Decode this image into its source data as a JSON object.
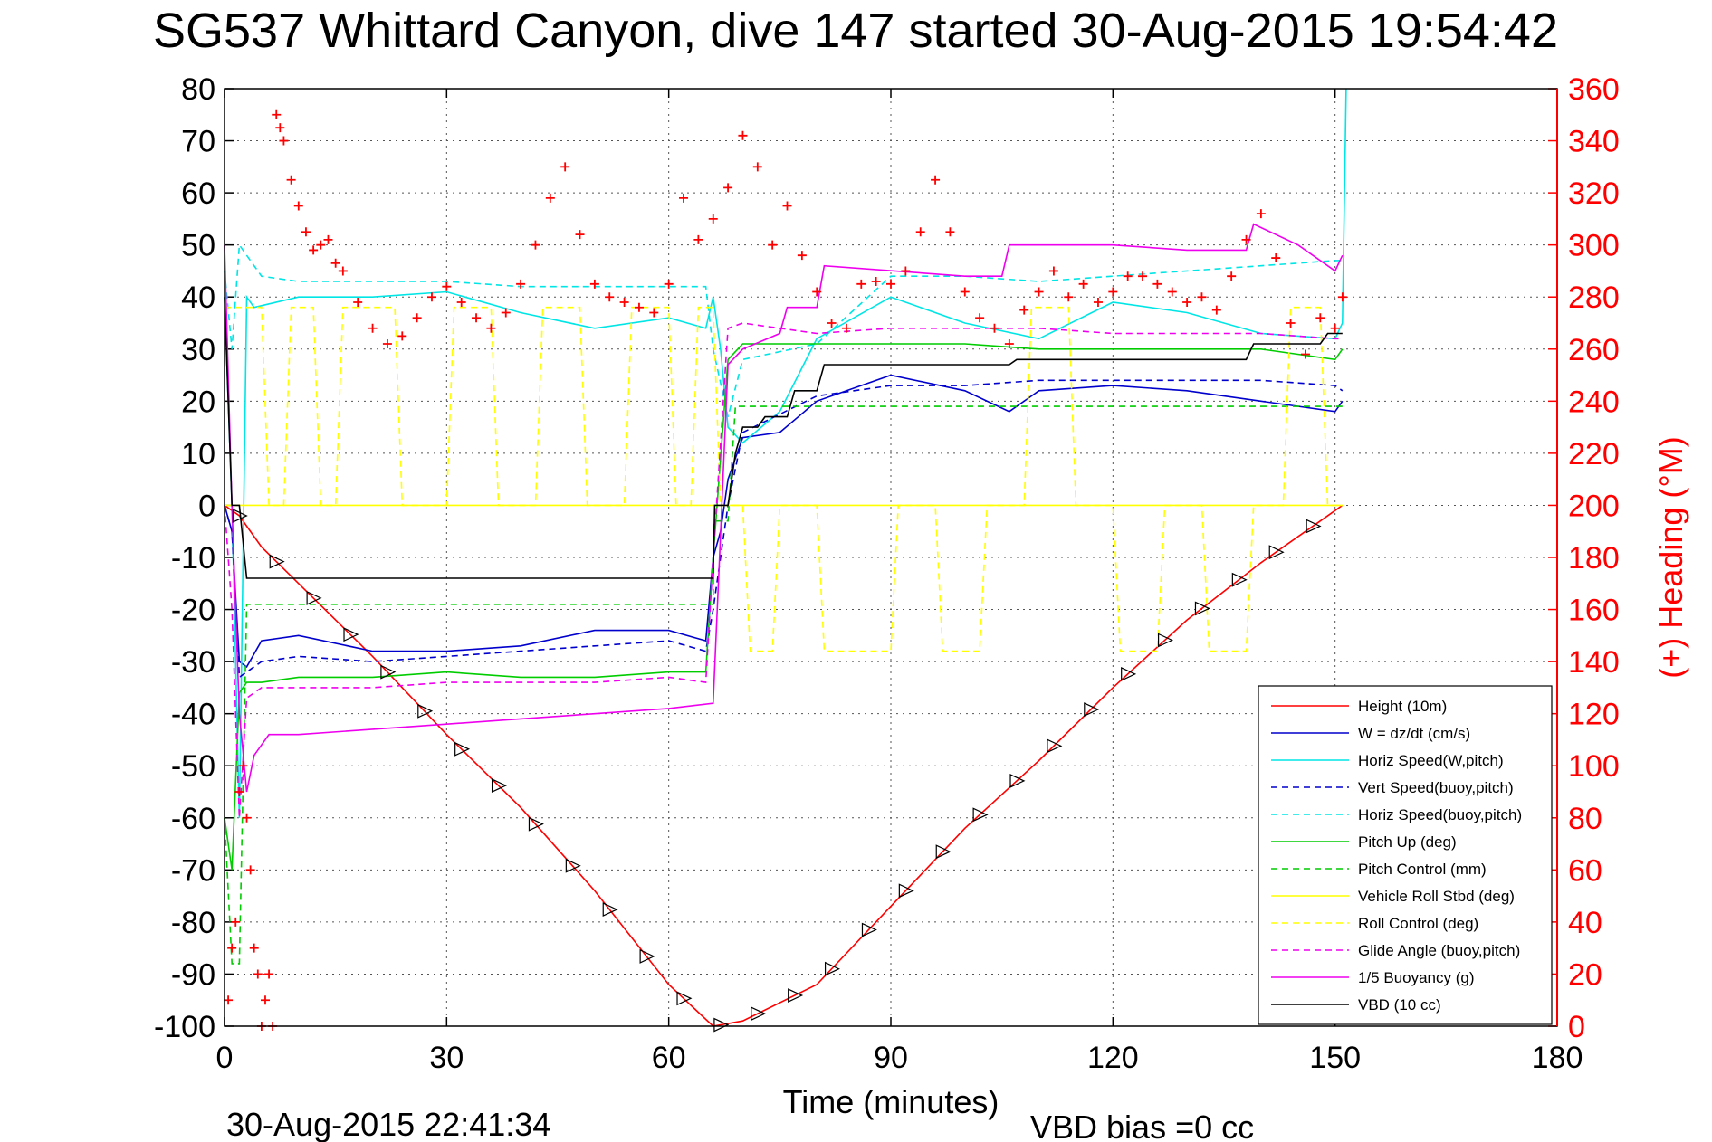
{
  "chart_data": {
    "type": "line",
    "title": "SG537 Whittard Canyon, dive 147 started 30-Aug-2015 19:54:42",
    "xlabel": "Time (minutes)",
    "ylabel": "",
    "ylabel_right": "(+) Heading (°M)",
    "xlim": [
      0,
      180
    ],
    "ylim": [
      -100,
      80
    ],
    "ylim_right": [
      0,
      360
    ],
    "x_ticks": [
      "0",
      "30",
      "60",
      "90",
      "120",
      "150",
      "180"
    ],
    "y_ticks": [
      "80",
      "70",
      "60",
      "50",
      "40",
      "30",
      "20",
      "10",
      "0",
      "-10",
      "-20",
      "-30",
      "-40",
      "-50",
      "-60",
      "-70",
      "-80",
      "-90",
      "-100"
    ],
    "y_ticks_right": [
      "360",
      "340",
      "320",
      "300",
      "280",
      "260",
      "240",
      "220",
      "200",
      "180",
      "160",
      "140",
      "120",
      "100",
      "80",
      "60",
      "40",
      "20",
      "0"
    ],
    "grid": true,
    "legend_position": "bottom-right",
    "series": [
      {
        "name": "Height (10m)",
        "color": "#ff0000",
        "style": "solid",
        "x": [
          0,
          2,
          5,
          10,
          20,
          30,
          40,
          50,
          60,
          66,
          70,
          80,
          90,
          100,
          110,
          120,
          130,
          140,
          150,
          151
        ],
        "y": [
          0,
          -2,
          -8,
          -15,
          -29,
          -44,
          -58,
          -74,
          -92,
          -100,
          -99,
          -92,
          -77,
          -62,
          -49,
          -35,
          -22,
          -11,
          -1,
          0
        ]
      },
      {
        "name": "W = dz/dt (cm/s)",
        "color": "#0000cc",
        "style": "solid",
        "x": [
          0,
          1,
          2,
          3,
          5,
          10,
          20,
          30,
          40,
          50,
          60,
          65,
          66,
          67,
          68,
          70,
          75,
          80,
          90,
          100,
          106,
          110,
          120,
          130,
          140,
          150,
          151
        ],
        "y": [
          0,
          -5,
          -30,
          -31,
          -26,
          -25,
          -28,
          -28,
          -27,
          -24,
          -24,
          -26,
          -10,
          -5,
          5,
          13,
          14,
          20,
          25,
          22,
          18,
          22,
          23,
          22,
          20,
          18,
          20
        ]
      },
      {
        "name": "Horiz Speed(W,pitch)",
        "color": "#00e5e5",
        "style": "solid",
        "x": [
          0,
          1,
          2,
          3,
          4,
          10,
          20,
          30,
          40,
          50,
          60,
          65,
          66,
          67,
          68,
          70,
          75,
          80,
          90,
          100,
          110,
          120,
          130,
          140,
          150,
          151,
          151.5
        ],
        "y": [
          40,
          0,
          -60,
          40,
          38,
          40,
          40,
          41,
          37,
          34,
          36,
          34,
          40,
          30,
          15,
          12,
          18,
          32,
          40,
          35,
          32,
          39,
          37,
          33,
          32,
          35,
          80
        ]
      },
      {
        "name": "Vert Speed(buoy,pitch)",
        "color": "#0000cc",
        "style": "dashed",
        "x": [
          0,
          1,
          2,
          3,
          5,
          10,
          20,
          30,
          40,
          50,
          60,
          65,
          66,
          68,
          70,
          80,
          90,
          100,
          110,
          120,
          130,
          140,
          150,
          151
        ],
        "y": [
          0,
          -5,
          -33,
          -32,
          -30,
          -29,
          -30,
          -29,
          -28,
          -27,
          -26,
          -28,
          -20,
          0,
          14,
          21,
          23,
          23,
          24,
          24,
          24,
          24,
          23,
          22
        ]
      },
      {
        "name": "Horiz Speed(buoy,pitch)",
        "color": "#00e5e5",
        "style": "dashed",
        "x": [
          0,
          1,
          2,
          3,
          5,
          10,
          20,
          30,
          40,
          50,
          60,
          65,
          66,
          68,
          70,
          80,
          90,
          100,
          110,
          120,
          130,
          140,
          150,
          151
        ],
        "y": [
          45,
          30,
          50,
          48,
          44,
          43,
          43,
          43,
          42,
          42,
          42,
          42,
          30,
          17,
          28,
          31,
          44,
          44,
          43,
          44,
          45,
          46,
          47,
          47
        ]
      },
      {
        "name": "Pitch Up (deg)",
        "color": "#00cc00",
        "style": "solid",
        "x": [
          0,
          1,
          2,
          3,
          5,
          10,
          20,
          30,
          40,
          50,
          60,
          65,
          66,
          68,
          70,
          80,
          90,
          100,
          110,
          120,
          130,
          140,
          150,
          151
        ],
        "y": [
          -60,
          -70,
          -36,
          -34,
          -34,
          -33,
          -33,
          -32,
          -33,
          -33,
          -32,
          -32,
          -10,
          28,
          31,
          31,
          31,
          31,
          30,
          30,
          30,
          30,
          28,
          30
        ]
      },
      {
        "name": "Pitch Control (mm)",
        "color": "#00cc00",
        "style": "dashed",
        "x": [
          0,
          1,
          2,
          3,
          66,
          66.1,
          68,
          69,
          151
        ],
        "y": [
          -60,
          -88,
          -88,
          -19,
          -19,
          -3,
          -3,
          19,
          19
        ]
      },
      {
        "name": "Vehicle Roll Stbd (deg)",
        "color": "#ffff00",
        "style": "solid",
        "x": [
          0,
          151
        ],
        "y": [
          0,
          0
        ]
      },
      {
        "name": "Roll Control (deg)",
        "color": "#ffff00",
        "style": "dashed",
        "x": [
          0,
          5,
          6,
          8,
          9,
          12,
          13,
          15,
          16,
          23,
          24,
          30,
          31,
          36,
          37,
          42,
          43,
          48,
          49,
          54,
          55,
          60,
          61,
          63,
          64,
          66,
          67,
          70,
          71,
          74,
          75,
          80,
          81,
          90,
          91,
          96,
          97,
          102,
          103,
          108,
          109,
          114,
          115,
          120,
          121,
          126,
          127,
          132,
          133,
          138,
          139,
          143,
          144,
          148,
          149,
          151
        ],
        "y": [
          38,
          38,
          0,
          0,
          38,
          38,
          0,
          0,
          38,
          38,
          0,
          0,
          38,
          38,
          0,
          0,
          38,
          38,
          0,
          0,
          38,
          38,
          0,
          0,
          38,
          38,
          0,
          0,
          -28,
          -28,
          0,
          0,
          -28,
          -28,
          0,
          0,
          -28,
          -28,
          0,
          0,
          38,
          38,
          0,
          0,
          -28,
          -28,
          0,
          0,
          -28,
          -28,
          0,
          0,
          38,
          38,
          0,
          0
        ]
      },
      {
        "name": "Glide Angle (buoy,pitch)",
        "color": "#ee00ee",
        "style": "dashed",
        "x": [
          0,
          1,
          2,
          3,
          5,
          10,
          20,
          30,
          40,
          50,
          60,
          65,
          66,
          68,
          70,
          80,
          90,
          100,
          110,
          120,
          130,
          140,
          150,
          151
        ],
        "y": [
          0,
          -20,
          -60,
          -37,
          -35,
          -35,
          -35,
          -34,
          -34,
          -34,
          -33,
          -34,
          -10,
          34,
          35,
          33,
          34,
          34,
          34,
          33,
          33,
          33,
          32,
          32
        ]
      },
      {
        "name": "1/5 Buoyancy (g)",
        "color": "#ee00ee",
        "style": "solid",
        "x": [
          0,
          1,
          2,
          3,
          4,
          6,
          10,
          20,
          30,
          40,
          50,
          60,
          66,
          68,
          70,
          75,
          76,
          80,
          81,
          100,
          101,
          105,
          106,
          120,
          130,
          138,
          139,
          145,
          150,
          151
        ],
        "y": [
          50,
          0,
          -40,
          -55,
          -48,
          -44,
          -44,
          -43,
          -42,
          -41,
          -40,
          -39,
          -38,
          27,
          30,
          33,
          38,
          38,
          46,
          44,
          44,
          44,
          50,
          50,
          49,
          49,
          54,
          50,
          45,
          48
        ]
      },
      {
        "name": "VBD (10 cc)",
        "color": "#000000",
        "style": "solid",
        "x": [
          0,
          1,
          2,
          3,
          66,
          66.2,
          68,
          69,
          70,
          72,
          73,
          76,
          77,
          80,
          81,
          106,
          107,
          138,
          139,
          148,
          149,
          151
        ],
        "y": [
          40,
          0,
          0,
          -14,
          -14,
          0,
          0,
          10,
          15,
          15,
          17,
          17,
          22,
          22,
          27,
          27,
          28,
          28,
          31,
          31,
          33,
          33
        ]
      }
    ],
    "heading_series": {
      "name": "Heading",
      "color": "#ff0000",
      "marker": "+",
      "axis": "right",
      "x": [
        0.5,
        1,
        1.5,
        2,
        2.5,
        3,
        3.5,
        4,
        4.5,
        5,
        5.5,
        6,
        6.5,
        7,
        7.5,
        8,
        9,
        10,
        11,
        12,
        13,
        14,
        15,
        16,
        18,
        20,
        22,
        24,
        26,
        28,
        30,
        32,
        34,
        36,
        38,
        40,
        42,
        44,
        46,
        48,
        50,
        52,
        54,
        56,
        58,
        60,
        62,
        64,
        66,
        68,
        70,
        72,
        74,
        76,
        78,
        80,
        82,
        84,
        86,
        88,
        90,
        92,
        94,
        96,
        98,
        100,
        102,
        104,
        106,
        108,
        110,
        112,
        114,
        116,
        118,
        120,
        122,
        124,
        126,
        128,
        130,
        132,
        134,
        136,
        138,
        140,
        142,
        144,
        146,
        148,
        150,
        151
      ],
      "y": [
        10,
        30,
        40,
        90,
        100,
        80,
        60,
        30,
        20,
        0,
        10,
        20,
        0,
        350,
        345,
        340,
        325,
        315,
        305,
        298,
        300,
        302,
        293,
        290,
        278,
        268,
        262,
        265,
        272,
        280,
        284,
        278,
        272,
        268,
        274,
        285,
        300,
        318,
        330,
        304,
        285,
        280,
        278,
        276,
        274,
        285,
        318,
        302,
        310,
        322,
        342,
        330,
        300,
        315,
        296,
        282,
        270,
        268,
        285,
        286,
        285,
        290,
        305,
        325,
        305,
        282,
        272,
        268,
        262,
        275,
        282,
        290,
        280,
        285,
        278,
        282,
        288,
        288,
        285,
        282,
        278,
        280,
        275,
        288,
        302,
        312,
        295,
        270,
        258,
        272,
        268,
        280
      ]
    }
  },
  "footer": {
    "timestamp": "30-Aug-2015 22:41:34",
    "vbd_bias": "VBD bias =0 cc"
  }
}
